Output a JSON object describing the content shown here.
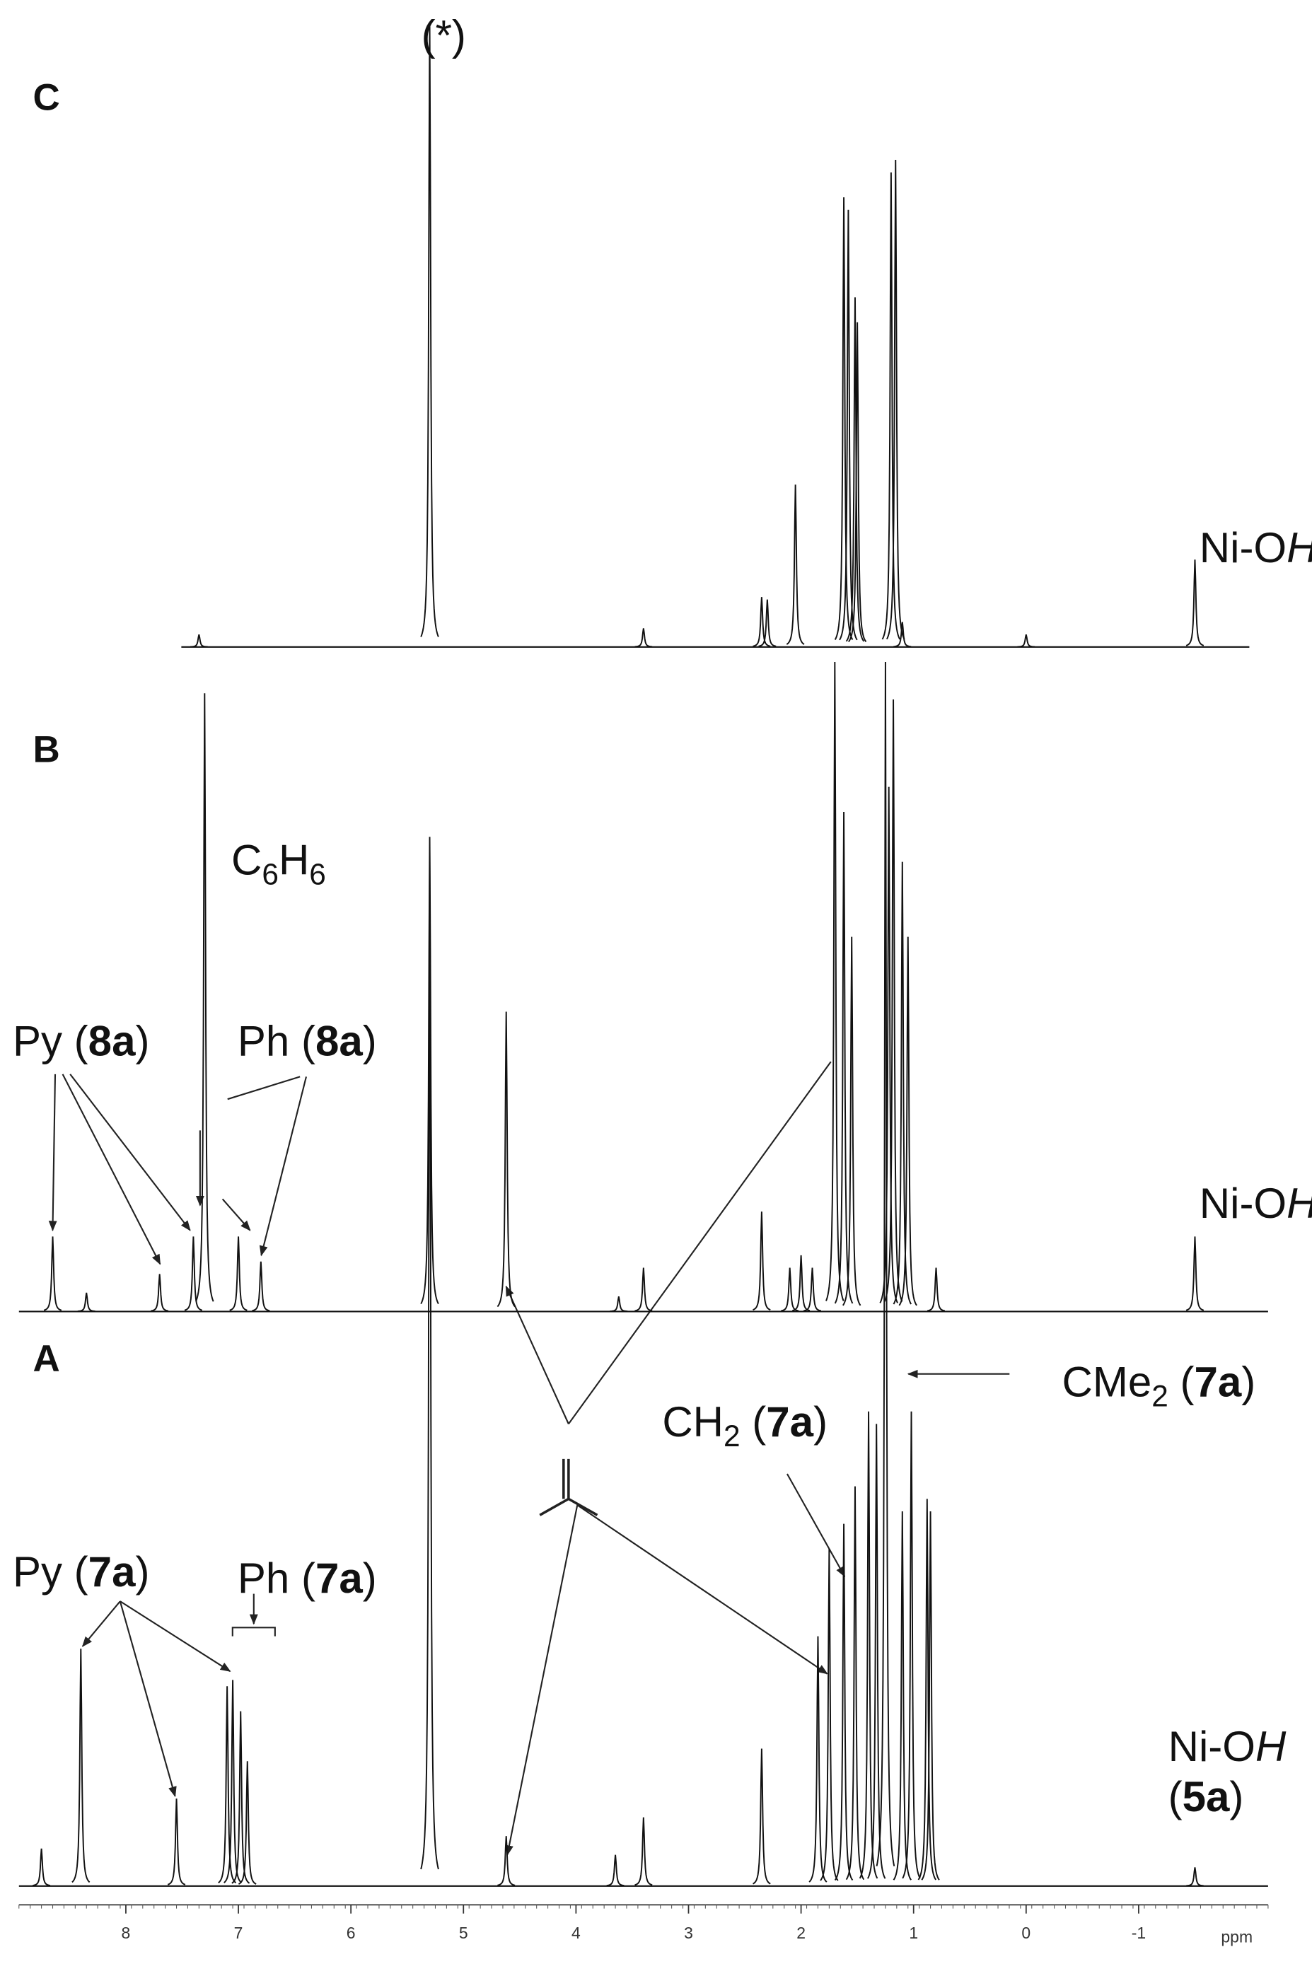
{
  "chart_data": {
    "type": "spectrum",
    "xlabel": "ppm",
    "xlim": [
      8.95,
      -2.15
    ],
    "xticks": [
      8,
      7,
      6,
      5,
      4,
      3,
      2,
      1,
      0,
      -1
    ],
    "series": [
      {
        "name": "C",
        "x": [
          7.35,
          5.3,
          3.4,
          2.35,
          2.3,
          2.05,
          1.62,
          1.58,
          1.52,
          1.5,
          1.2,
          1.16,
          1.1,
          0,
          -1.5
        ],
        "values": [
          10,
          500,
          15,
          40,
          38,
          130,
          360,
          350,
          280,
          260,
          380,
          390,
          20,
          10,
          70
        ]
      },
      {
        "name": "B",
        "x": [
          8.65,
          8.35,
          7.7,
          7.4,
          7.3,
          7.0,
          6.8,
          5.3,
          4.62,
          3.62,
          3.4,
          2.35,
          2.1,
          2.0,
          1.9,
          1.7,
          1.62,
          1.55,
          1.22,
          1.18,
          1.1,
          1.05,
          0.8,
          -1.5
        ],
        "values": [
          60,
          15,
          30,
          60,
          495,
          60,
          40,
          380,
          240,
          12,
          35,
          80,
          35,
          45,
          35,
          520,
          400,
          300,
          420,
          490,
          360,
          300,
          35,
          60
        ]
      },
      {
        "name": "A",
        "x": [
          8.75,
          8.4,
          7.55,
          7.1,
          7.05,
          6.98,
          6.92,
          5.3,
          4.62,
          3.65,
          3.4,
          2.35,
          1.85,
          1.75,
          1.62,
          1.52,
          1.4,
          1.33,
          1.25,
          1.1,
          1.02,
          0.88,
          0.85,
          -1.5
        ],
        "values": [
          30,
          190,
          70,
          160,
          165,
          140,
          100,
          830,
          40,
          25,
          55,
          110,
          200,
          270,
          290,
          320,
          380,
          370,
          980,
          300,
          380,
          310,
          300,
          15
        ]
      }
    ],
    "annotations": [
      {
        "parts": [
          {
            "text": "(*)"
          }
        ]
      },
      {
        "parts": [
          {
            "text": "Ni-O"
          },
          {
            "text": "H",
            "italic": true
          }
        ]
      },
      {
        "parts": [
          {
            "text": "C"
          },
          {
            "text": "6",
            "sub": true
          },
          {
            "text": "H"
          },
          {
            "text": "6",
            "sub": true
          }
        ]
      },
      {
        "parts": [
          {
            "text": "Py ("
          },
          {
            "text": "8a",
            "bold": true
          },
          {
            "text": ")"
          }
        ]
      },
      {
        "parts": [
          {
            "text": "Ph ("
          },
          {
            "text": "8a",
            "bold": true
          },
          {
            "text": ")"
          }
        ]
      },
      {
        "parts": [
          {
            "text": "Ni-O"
          },
          {
            "text": "H",
            "italic": true
          }
        ]
      },
      {
        "parts": [
          {
            "text": "CMe"
          },
          {
            "text": "2",
            "sub": true
          },
          {
            "text": " ("
          },
          {
            "text": "7a",
            "bold": true
          },
          {
            "text": ")"
          }
        ]
      },
      {
        "parts": [
          {
            "text": "CH"
          },
          {
            "text": "2",
            "sub": true
          },
          {
            "text": " ("
          },
          {
            "text": "7a",
            "bold": true
          },
          {
            "text": ")"
          }
        ]
      },
      {
        "parts": [
          {
            "text": "Py ("
          },
          {
            "text": "7a",
            "bold": true
          },
          {
            "text": ")"
          }
        ]
      },
      {
        "parts": [
          {
            "text": "Ph ("
          },
          {
            "text": "7a",
            "bold": true
          },
          {
            "text": ")"
          }
        ]
      },
      {
        "parts": [
          {
            "text": "Ni-O"
          },
          {
            "text": "H",
            "italic": true
          }
        ]
      },
      {
        "parts": [
          {
            "text": "("
          },
          {
            "text": "5a",
            "bold": true
          },
          {
            "text": ")"
          }
        ]
      }
    ]
  }
}
